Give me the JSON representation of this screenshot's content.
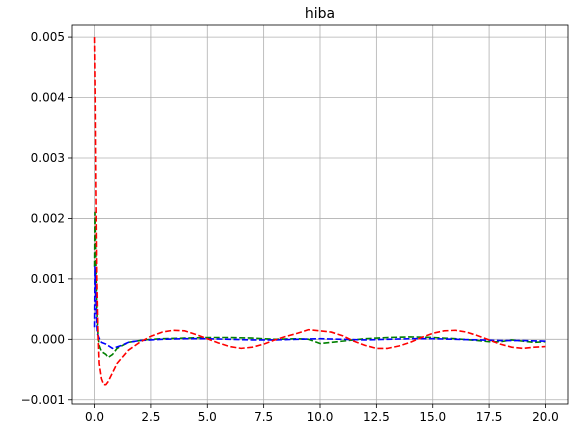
{
  "chart_data": {
    "type": "line",
    "title": "hiba",
    "xlabel": "",
    "ylabel": "",
    "xlim": [
      -1.0,
      21.0
    ],
    "ylim": [
      -0.00107,
      0.0052
    ],
    "grid": true,
    "legend": "none",
    "x_ticks": [
      0.0,
      2.5,
      5.0,
      7.5,
      10.0,
      12.5,
      15.0,
      17.5,
      20.0
    ],
    "x_tick_labels": [
      "0.0",
      "2.5",
      "5.0",
      "7.5",
      "10.0",
      "12.5",
      "15.0",
      "17.5",
      "20.0"
    ],
    "y_ticks": [
      -0.001,
      0.0,
      0.001,
      0.002,
      0.003,
      0.004,
      0.005
    ],
    "y_tick_labels": [
      "−0.001",
      "0.000",
      "0.001",
      "0.002",
      "0.003",
      "0.004",
      "0.005"
    ],
    "series": [
      {
        "color": "#008000",
        "style": "dashed",
        "x": [
          0.0,
          0.02,
          0.05,
          0.1,
          0.15,
          0.2,
          0.3,
          0.5,
          0.6,
          0.8,
          1.0,
          1.5,
          2.0,
          2.5,
          3.0,
          4.0,
          5.0,
          6.0,
          7.0,
          8.0,
          9.0,
          9.5,
          10.0,
          11.0,
          12.0,
          13.0,
          14.0,
          15.0,
          16.0,
          17.0,
          17.5,
          18.0,
          18.5,
          19.0,
          19.5,
          20.0
        ],
        "values": [
          0.0012,
          0.0021,
          0.0015,
          0.0005,
          0.0001,
          -0.0001,
          -0.0002,
          -0.00025,
          -0.0003,
          -0.00025,
          -0.00015,
          -5e-05,
          -2e-05,
          0.0,
          1e-05,
          2e-05,
          3e-05,
          3e-05,
          2e-05,
          0.0,
          1e-05,
          0.0,
          -7e-05,
          -3e-05,
          1e-05,
          3e-05,
          4e-05,
          3e-05,
          1e-05,
          -2e-05,
          -4e-05,
          -4e-05,
          -1e-05,
          -3e-05,
          -5e-05,
          -4e-05
        ]
      },
      {
        "color": "#0000ff",
        "style": "dashed",
        "x": [
          0.0,
          0.02,
          0.05,
          0.08,
          0.12,
          0.2,
          0.3,
          0.5,
          0.8,
          1.2,
          1.5,
          2.0,
          3.0,
          4.0,
          5.0,
          6.0,
          7.0,
          8.0,
          9.0,
          10.0,
          11.0,
          12.0,
          13.0,
          14.0,
          15.0,
          16.0,
          17.0,
          18.0,
          19.0,
          20.0
        ],
        "values": [
          0.0002,
          0.0012,
          0.0008,
          0.0004,
          0.0001,
          2e-05,
          -5e-05,
          -8e-05,
          -0.00015,
          -0.0001,
          -5e-05,
          -2e-05,
          0.0,
          1e-05,
          1e-05,
          0.0,
          -1e-05,
          -1e-05,
          0.0,
          1e-05,
          0.0,
          -1e-05,
          0.0,
          1e-05,
          1e-05,
          0.0,
          -1e-05,
          -2e-05,
          -2e-05,
          -3e-05
        ]
      },
      {
        "color": "#ff0000",
        "style": "dashed",
        "x": [
          0.0,
          0.03,
          0.06,
          0.1,
          0.15,
          0.2,
          0.3,
          0.4,
          0.5,
          0.6,
          0.8,
          1.0,
          1.5,
          2.0,
          2.5,
          3.0,
          3.5,
          4.0,
          4.5,
          5.0,
          5.5,
          6.0,
          6.5,
          7.0,
          7.5,
          8.0,
          8.5,
          9.0,
          9.5,
          10.0,
          10.5,
          11.0,
          11.5,
          12.0,
          12.5,
          13.0,
          13.5,
          14.0,
          14.5,
          15.0,
          15.5,
          16.0,
          16.5,
          17.0,
          17.5,
          18.0,
          18.5,
          19.0,
          19.5,
          20.0
        ],
        "values": [
          0.005,
          0.004,
          0.0025,
          0.001,
          0.0001,
          -0.0004,
          -0.00065,
          -0.00075,
          -0.00075,
          -0.0007,
          -0.00055,
          -0.0004,
          -0.00018,
          -5e-05,
          5e-05,
          0.00012,
          0.00015,
          0.00014,
          8e-05,
          1e-05,
          -6e-05,
          -0.00012,
          -0.00015,
          -0.00013,
          -8e-05,
          -1e-05,
          5e-05,
          0.0001,
          0.00016,
          0.00014,
          0.00012,
          6e-05,
          -3e-05,
          -0.0001,
          -0.00015,
          -0.00015,
          -0.00011,
          -5e-05,
          3e-05,
          0.0001,
          0.00014,
          0.00015,
          0.00012,
          6e-05,
          -1e-05,
          -8e-05,
          -0.00013,
          -0.00015,
          -0.00013,
          -0.00012
        ]
      }
    ]
  }
}
